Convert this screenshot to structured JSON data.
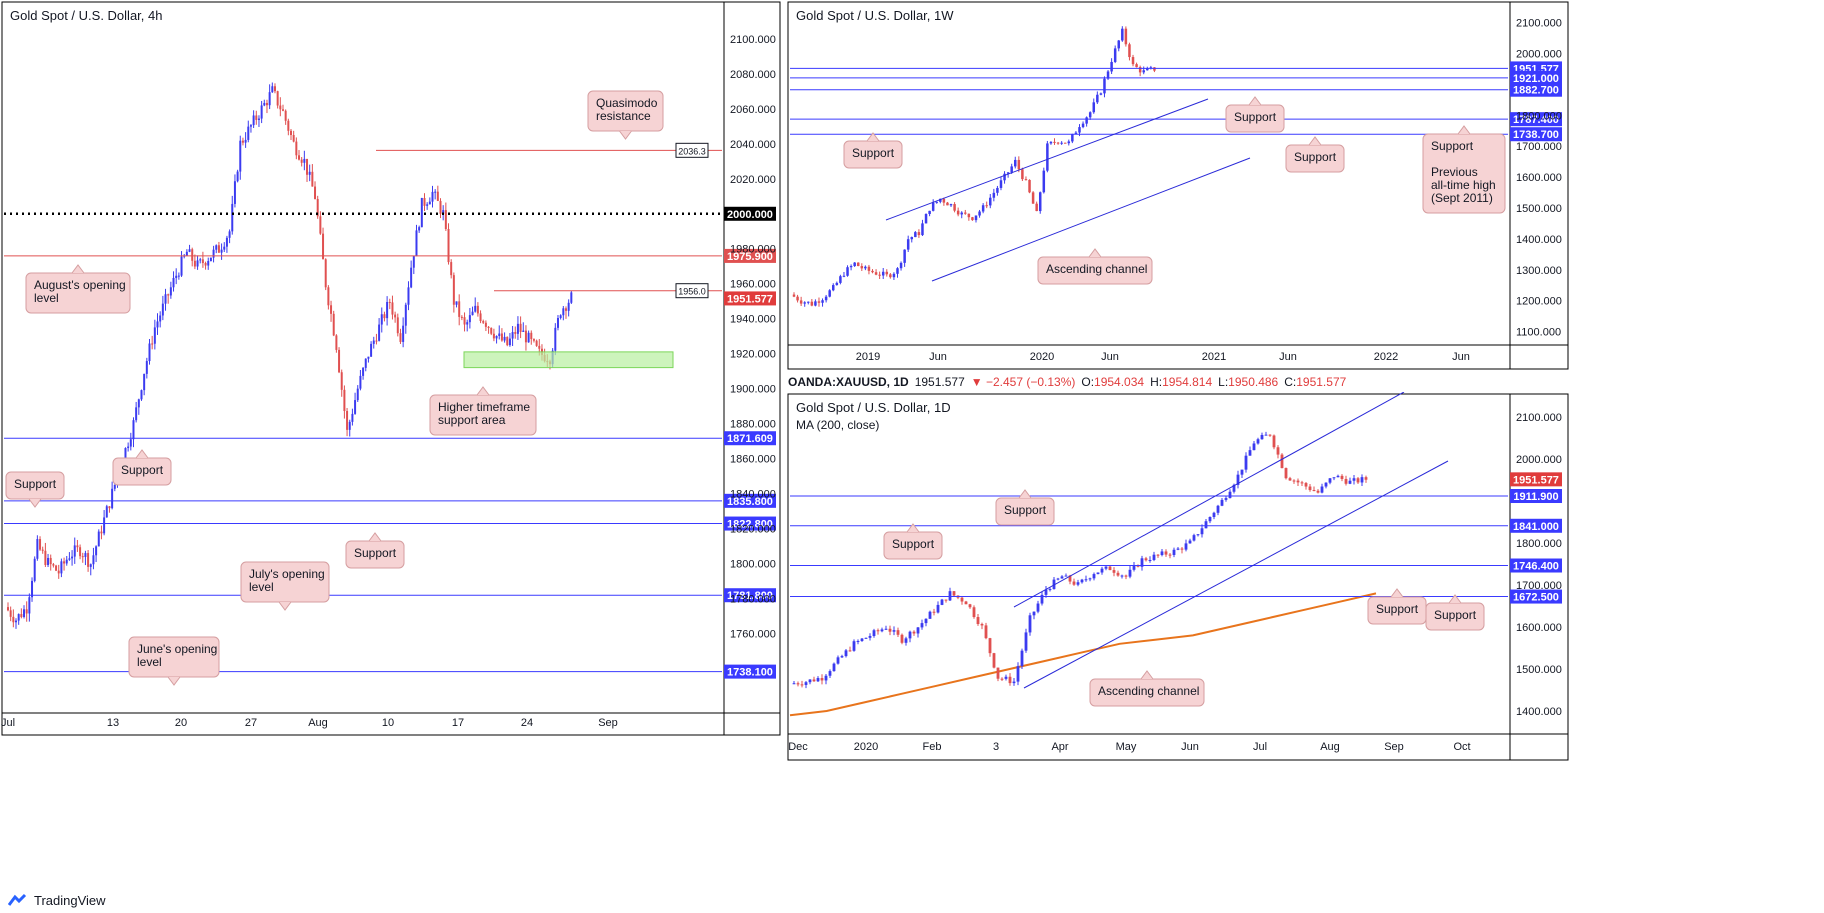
{
  "brand": "TradingView",
  "chart_data": [
    {
      "id": "h4",
      "type": "candlestick",
      "title": "Gold Spot / U.S. Dollar, 4h",
      "ylim": [
        1715,
        2120
      ],
      "yticks": [
        "1760.000",
        "1780.000",
        "1800.000",
        "1820.000",
        "1840.000",
        "1860.000",
        "1880.000",
        "1900.000",
        "1920.000",
        "1940.000",
        "1960.000",
        "1980.000",
        "2020.000",
        "2040.000",
        "2060.000",
        "2080.000",
        "2100.000"
      ],
      "xticks": [
        "Jul",
        "13",
        "20",
        "27",
        "Aug",
        "10",
        "17",
        "24",
        "Sep"
      ],
      "price_path": [
        1775,
        1768,
        1775,
        1810,
        1800,
        1795,
        1805,
        1808,
        1800,
        1820,
        1840,
        1860,
        1880,
        1910,
        1935,
        1950,
        1965,
        1978,
        1970,
        1975,
        1980,
        1990,
        2040,
        2050,
        2060,
        2070,
        2058,
        2040,
        2030,
        2010,
        1960,
        1925,
        1875,
        1900,
        1920,
        1935,
        1950,
        1930,
        1970,
        2005,
        2012,
        2000,
        1950,
        1935,
        1945,
        1938,
        1930,
        1925,
        1935,
        1928,
        1920,
        1918,
        1945,
        1952
      ],
      "levels": [
        {
          "price": "2036.3",
          "color": "#e05050",
          "label": "2036.3",
          "style": "box"
        },
        {
          "price": "2000.000",
          "color": "#000000",
          "label": "2000.000",
          "style": "dotted"
        },
        {
          "price": "1975.900",
          "color": "#e05050",
          "label": "1975.900",
          "style": "red"
        },
        {
          "price": "1956.0",
          "color": "#e05050",
          "label": "1956.0",
          "style": "box"
        },
        {
          "price": "1951.577",
          "color": "#e03c3c",
          "label": "1951.577",
          "style": "price"
        },
        {
          "price": "1871.609",
          "color": "#3a3aff",
          "label": "1871.609",
          "style": "blue"
        },
        {
          "price": "1835.800",
          "color": "#3a3aff",
          "label": "1835.800",
          "style": "blue"
        },
        {
          "price": "1822.800",
          "color": "#3a3aff",
          "label": "1822.800",
          "style": "blue"
        },
        {
          "price": "1781.800",
          "color": "#3a3aff",
          "label": "1781.800",
          "style": "blue"
        },
        {
          "price": "1738.100",
          "color": "#3a3aff",
          "label": "1738.100",
          "style": "blue"
        }
      ],
      "zone": {
        "from": "1912",
        "to": "1921"
      },
      "annotations": [
        "Quasimodo resistance",
        "August's opening level",
        "Higher timeframe support area",
        "Support",
        "Support",
        "Support",
        "July's opening level",
        "June's opening level"
      ]
    },
    {
      "id": "w1",
      "type": "candlestick",
      "title": "Gold Spot / U.S. Dollar, 1W",
      "ylim": [
        1060,
        2160
      ],
      "yticks": [
        "1100.000",
        "1200.000",
        "1300.000",
        "1400.000",
        "1500.000",
        "1600.000",
        "1700.000",
        "1800.000",
        "2000.000",
        "2100.000"
      ],
      "xticks": [
        "2019",
        "Jun",
        "2020",
        "Jun",
        "2021",
        "Jun",
        "2022",
        "Jun"
      ],
      "price_path": [
        1220,
        1200,
        1190,
        1210,
        1240,
        1290,
        1320,
        1300,
        1290,
        1280,
        1300,
        1400,
        1420,
        1500,
        1530,
        1510,
        1480,
        1470,
        1500,
        1550,
        1600,
        1650,
        1580,
        1480,
        1700,
        1720,
        1710,
        1770,
        1810,
        1880,
        1980,
        2070,
        1960,
        1940,
        1950
      ],
      "levels": [
        {
          "price": "1951.577",
          "color": "#3a3aff",
          "label": "1951.577",
          "style": "blue"
        },
        {
          "price": "1921.000",
          "color": "#3a3aff",
          "label": "1921.000",
          "style": "blue"
        },
        {
          "price": "1882.700",
          "color": "#3a3aff",
          "label": "1882.700",
          "style": "blue"
        },
        {
          "price": "1787.400",
          "color": "#3a3aff",
          "label": "1787.400",
          "style": "blue"
        },
        {
          "price": "1738.700",
          "color": "#3a3aff",
          "label": "1738.700",
          "style": "blue"
        }
      ],
      "annotations": [
        "Support",
        "Support",
        "Support",
        "Support Previous all-time high (Sept 2011)",
        "Ascending channel"
      ]
    },
    {
      "id": "d1",
      "type": "candlestick",
      "title": "Gold Spot / U.S. Dollar, 1D",
      "legend": "MA (200, close)",
      "symbol": "OANDA:XAUUSD, 1D",
      "last": "1951.577",
      "change": "▼ −2.457 (−0.13%)",
      "ohlc": {
        "O": "1954.034",
        "H": "1954.814",
        "L": "1950.486",
        "C": "1951.577"
      },
      "ylim": [
        1350,
        2150
      ],
      "yticks": [
        "1400.000",
        "1500.000",
        "1600.000",
        "1700.000",
        "1800.000",
        "2000.000",
        "2100.000"
      ],
      "xticks": [
        "Dec",
        "2020",
        "Feb",
        "3",
        "Apr",
        "May",
        "Jun",
        "Jul",
        "Aug",
        "Sep",
        "Oct"
      ],
      "price_path": [
        1465,
        1470,
        1480,
        1520,
        1560,
        1580,
        1600,
        1570,
        1600,
        1640,
        1680,
        1660,
        1600,
        1480,
        1470,
        1620,
        1690,
        1720,
        1700,
        1730,
        1740,
        1720,
        1760,
        1770,
        1780,
        1800,
        1850,
        1900,
        1960,
        2040,
        2060,
        1960,
        1940,
        1920,
        1960,
        1945,
        1952
      ],
      "ma_path": [
        1390,
        1400,
        1420,
        1440,
        1460,
        1480,
        1500,
        1520,
        1540,
        1560,
        1570,
        1580,
        1600,
        1620,
        1640,
        1660,
        1680
      ],
      "levels": [
        {
          "price": "1951.577",
          "color": "#e03c3c",
          "label": "1951.577",
          "style": "price"
        },
        {
          "price": "1911.900",
          "color": "#3a3aff",
          "label": "1911.900",
          "style": "blue"
        },
        {
          "price": "1841.000",
          "color": "#3a3aff",
          "label": "1841.000",
          "style": "blue"
        },
        {
          "price": "1746.400",
          "color": "#3a3aff",
          "label": "1746.400",
          "style": "blue"
        },
        {
          "price": "1672.500",
          "color": "#3a3aff",
          "label": "1672.500",
          "style": "blue"
        }
      ],
      "annotations": [
        "Support",
        "Support",
        "Support",
        "Support",
        "Ascending channel"
      ]
    }
  ]
}
